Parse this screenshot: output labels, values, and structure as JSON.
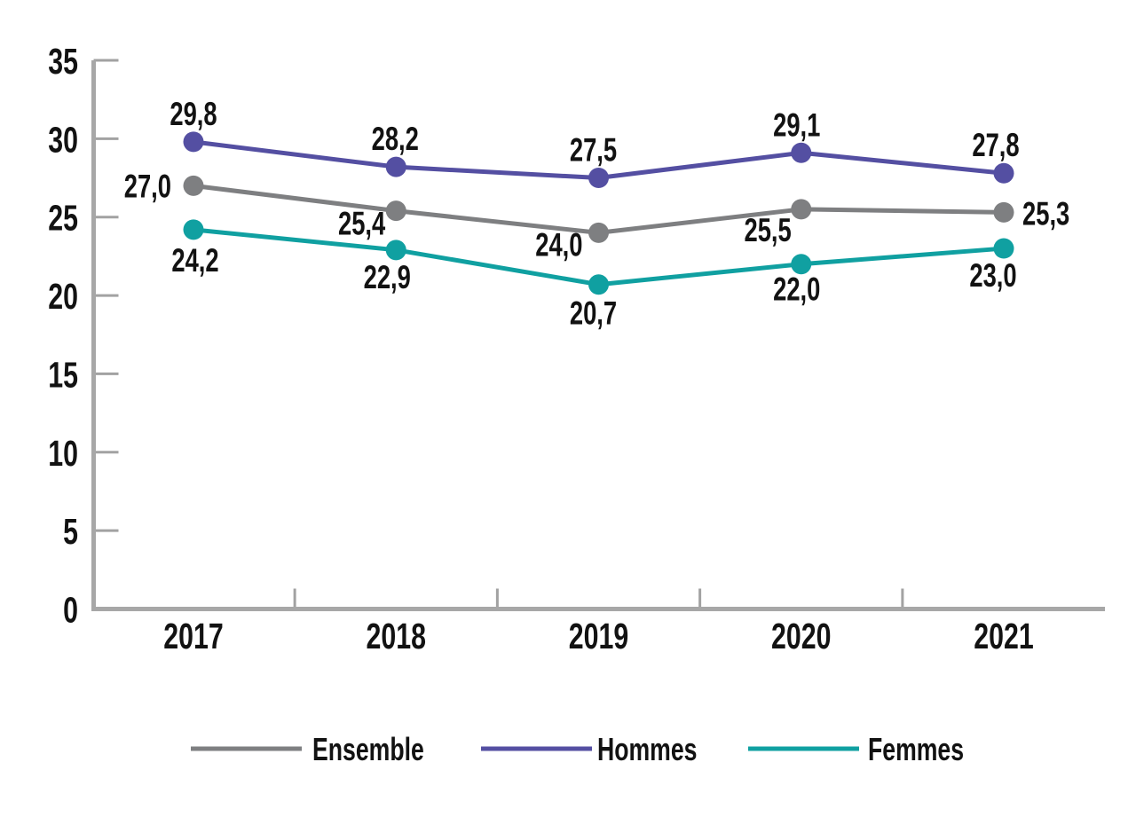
{
  "chart_data": {
    "type": "line",
    "title": "",
    "xlabel": "",
    "ylabel": "",
    "categories": [
      "2017",
      "2018",
      "2019",
      "2020",
      "2021"
    ],
    "series": [
      {
        "name": "Ensemble",
        "color": "#7E7F81",
        "values": [
          27.0,
          25.4,
          24.0,
          25.5,
          25.3
        ],
        "labels": [
          "27,0",
          "25,4",
          "24,0",
          "25,5",
          "25,3"
        ],
        "label_offsets": [
          [
            "end",
            -25,
            13
          ],
          [
            "end",
            -12,
            27
          ],
          [
            "end",
            -18,
            26
          ],
          [
            "end",
            -11,
            36
          ],
          [
            "start",
            21,
            14
          ]
        ]
      },
      {
        "name": "Hommes",
        "color": "#544FA2",
        "values": [
          29.8,
          28.2,
          27.5,
          29.1,
          27.8
        ],
        "labels": [
          "29,8",
          "28,2",
          "27,5",
          "29,1",
          "27,8"
        ],
        "label_offsets": [
          [
            "middle",
            0,
            -19
          ],
          [
            "middle",
            -1,
            -19
          ],
          [
            "middle",
            -6,
            -19
          ],
          [
            "middle",
            -5,
            -19
          ],
          [
            "middle",
            -9,
            -19
          ]
        ]
      },
      {
        "name": "Femmes",
        "color": "#10A0A1",
        "values": [
          24.2,
          22.9,
          20.7,
          22.0,
          23.0
        ],
        "labels": [
          "24,2",
          "22,9",
          "20,7",
          "22,0",
          "23,0"
        ],
        "label_offsets": [
          [
            "middle",
            2,
            47
          ],
          [
            "middle",
            -10,
            43
          ],
          [
            "middle",
            -6,
            45
          ],
          [
            "middle",
            -5,
            41
          ],
          [
            "middle",
            -12,
            43
          ]
        ]
      }
    ],
    "ylim": [
      0,
      35
    ],
    "yticks": [
      0,
      5,
      10,
      15,
      20,
      25,
      30,
      35
    ],
    "decimal_separator": ",",
    "grid": false,
    "point_labels": true,
    "legend_position": "bottom",
    "legend": [
      "Ensemble",
      "Hommes",
      "Femmes"
    ],
    "colors": {
      "axis": "#A7A7A7",
      "tick": "#A2A2A2",
      "text": "#121212"
    }
  }
}
